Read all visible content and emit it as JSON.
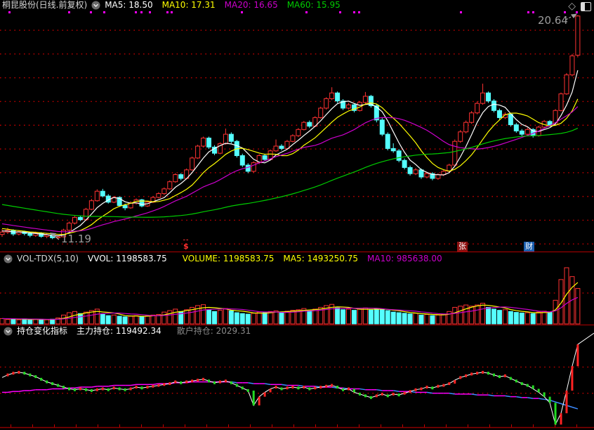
{
  "window": {
    "title": "桐昆股份(日线.前复权)"
  },
  "header": {
    "ma5": "MA5: 18.50",
    "ma10": "MA10: 17.31",
    "ma20": "MA20: 16.65",
    "ma60": "MA60: 15.95",
    "colors": {
      "ma5": "#ffffff",
      "ma10": "#ffff00",
      "ma20": "#cc00cc",
      "ma60": "#00cc00"
    }
  },
  "annotations": {
    "low": "11.19",
    "high": "20.64"
  },
  "markers": {
    "dollar": "$",
    "news1": "张",
    "news2": "财"
  },
  "volume_header": {
    "name": "VOL-TDX(5,10)",
    "vvol": "VVOL: 1198583.75",
    "volume": "VOLUME: 1198583.75",
    "ma5": "MA5: 1493250.75",
    "ma10": "MA10: 985638.00",
    "colors": {
      "name": "#d6d6d6",
      "vvol": "#ffffff",
      "volume": "#ffff00",
      "ma5": "#ffff00",
      "ma10": "#cc00cc"
    }
  },
  "holdings_header": {
    "name": "持仓变化指标",
    "main": "主力持仓: 119492.34",
    "retail": "散户持仓: 2029.31",
    "colors": {
      "name": "#ffffff",
      "main": "#ffffff",
      "retail": "#8a8a8a"
    }
  },
  "chart_data": [
    {
      "type": "candlestick",
      "title": "桐昆股份 日线 前复权",
      "ylim": [
        10.74,
        20.86
      ],
      "grid_prices": [
        11,
        12,
        13,
        14,
        15,
        16,
        17,
        18,
        19,
        20
      ],
      "ma_periods": [
        5,
        10,
        20,
        60
      ],
      "ma_colors": [
        "#ffffff",
        "#ffff00",
        "#cc00cc",
        "#00cc00"
      ],
      "up_color": "#ff3232",
      "down_color": "#55ffff",
      "low_annotation": {
        "value": 11.19,
        "index": 10
      },
      "high_annotation": {
        "value": 20.64,
        "index": 103
      },
      "ma_warmup": {
        "start": 13.9,
        "end": 11.5,
        "count": 60
      },
      "top_dots_x": [
        12,
        97,
        128,
        147,
        192,
        200,
        212,
        237,
        243,
        343,
        435,
        483,
        503,
        510,
        655,
        751,
        758,
        803,
        820
      ],
      "candles": [
        [
          11.4,
          11.62,
          11.3,
          11.5
        ],
        [
          11.5,
          11.68,
          11.42,
          11.58
        ],
        [
          11.58,
          11.62,
          11.34,
          11.42
        ],
        [
          11.42,
          11.58,
          11.36,
          11.52
        ],
        [
          11.52,
          11.56,
          11.36,
          11.44
        ],
        [
          11.44,
          11.5,
          11.28,
          11.36
        ],
        [
          11.36,
          11.52,
          11.3,
          11.46
        ],
        [
          11.46,
          11.5,
          11.26,
          11.32
        ],
        [
          11.32,
          11.44,
          11.24,
          11.38
        ],
        [
          11.38,
          11.42,
          11.2,
          11.26
        ],
        [
          11.26,
          11.36,
          11.19,
          11.3
        ],
        [
          11.3,
          11.64,
          11.28,
          11.58
        ],
        [
          11.58,
          11.94,
          11.54,
          11.88
        ],
        [
          11.88,
          12.18,
          11.82,
          12.12
        ],
        [
          12.12,
          12.2,
          11.96,
          12.02
        ],
        [
          12.02,
          12.52,
          12.0,
          12.46
        ],
        [
          12.46,
          12.9,
          12.42,
          12.82
        ],
        [
          12.82,
          13.3,
          12.78,
          13.22
        ],
        [
          13.22,
          13.32,
          12.96,
          13.02
        ],
        [
          13.02,
          13.1,
          12.7,
          12.76
        ],
        [
          12.76,
          13.02,
          12.72,
          12.96
        ],
        [
          12.96,
          13.0,
          12.56,
          12.62
        ],
        [
          12.62,
          12.7,
          12.42,
          12.52
        ],
        [
          12.52,
          12.8,
          12.48,
          12.72
        ],
        [
          12.72,
          12.92,
          12.66,
          12.86
        ],
        [
          12.86,
          12.9,
          12.54,
          12.6
        ],
        [
          12.6,
          12.82,
          12.56,
          12.76
        ],
        [
          12.76,
          13.02,
          12.72,
          12.96
        ],
        [
          12.96,
          13.18,
          12.92,
          13.12
        ],
        [
          13.12,
          13.38,
          13.06,
          13.32
        ],
        [
          13.32,
          13.68,
          13.28,
          13.62
        ],
        [
          13.62,
          13.98,
          13.58,
          13.92
        ],
        [
          13.92,
          13.98,
          13.68,
          13.76
        ],
        [
          13.76,
          14.18,
          13.72,
          14.12
        ],
        [
          14.12,
          14.68,
          14.08,
          14.62
        ],
        [
          14.62,
          15.18,
          14.58,
          15.12
        ],
        [
          15.12,
          15.52,
          15.06,
          15.46
        ],
        [
          15.46,
          15.52,
          15.0,
          15.08
        ],
        [
          15.08,
          15.16,
          14.74,
          14.82
        ],
        [
          14.82,
          15.28,
          14.78,
          15.22
        ],
        [
          15.22,
          15.86,
          15.18,
          15.62
        ],
        [
          15.62,
          15.7,
          15.24,
          15.32
        ],
        [
          15.32,
          15.38,
          14.64,
          14.72
        ],
        [
          14.72,
          14.8,
          14.24,
          14.32
        ],
        [
          14.32,
          14.4,
          13.98,
          14.06
        ],
        [
          14.06,
          14.48,
          14.0,
          14.42
        ],
        [
          14.42,
          14.78,
          14.36,
          14.72
        ],
        [
          14.72,
          14.8,
          14.48,
          14.56
        ],
        [
          14.56,
          14.98,
          14.52,
          14.92
        ],
        [
          14.92,
          15.4,
          14.88,
          15.12
        ],
        [
          15.12,
          15.2,
          14.94,
          15.02
        ],
        [
          15.02,
          15.38,
          14.98,
          15.32
        ],
        [
          15.32,
          15.62,
          15.28,
          15.56
        ],
        [
          15.56,
          15.88,
          15.5,
          15.82
        ],
        [
          15.82,
          16.18,
          15.78,
          16.12
        ],
        [
          16.12,
          16.2,
          15.88,
          15.96
        ],
        [
          15.96,
          16.38,
          15.92,
          16.32
        ],
        [
          16.32,
          16.78,
          16.28,
          16.72
        ],
        [
          16.72,
          17.18,
          16.66,
          17.12
        ],
        [
          17.12,
          17.6,
          17.06,
          17.36
        ],
        [
          17.36,
          17.42,
          16.94,
          17.02
        ],
        [
          17.02,
          17.1,
          16.64,
          16.72
        ],
        [
          16.72,
          16.94,
          16.66,
          16.86
        ],
        [
          16.86,
          16.92,
          16.54,
          16.62
        ],
        [
          16.62,
          17.02,
          16.58,
          16.96
        ],
        [
          16.96,
          17.4,
          16.9,
          17.22
        ],
        [
          17.22,
          17.28,
          16.74,
          16.82
        ],
        [
          16.82,
          16.88,
          16.12,
          16.22
        ],
        [
          16.22,
          16.3,
          15.54,
          15.62
        ],
        [
          15.62,
          15.7,
          14.94,
          15.02
        ],
        [
          15.02,
          15.24,
          14.84,
          14.92
        ],
        [
          14.92,
          15.0,
          14.44,
          14.52
        ],
        [
          14.52,
          14.6,
          14.14,
          14.22
        ],
        [
          14.22,
          14.3,
          13.88,
          13.96
        ],
        [
          13.96,
          14.2,
          13.9,
          14.12
        ],
        [
          14.12,
          14.18,
          13.74,
          13.82
        ],
        [
          13.82,
          14.04,
          13.76,
          13.96
        ],
        [
          13.96,
          14.02,
          13.68,
          13.76
        ],
        [
          13.76,
          13.98,
          13.7,
          13.92
        ],
        [
          13.92,
          14.12,
          13.86,
          14.06
        ],
        [
          14.06,
          14.38,
          14.0,
          14.32
        ],
        [
          14.32,
          15.4,
          14.28,
          15.32
        ],
        [
          15.32,
          15.8,
          15.26,
          15.72
        ],
        [
          15.72,
          16.2,
          15.66,
          16.12
        ],
        [
          16.12,
          16.6,
          16.06,
          16.52
        ],
        [
          16.52,
          17.0,
          16.46,
          16.92
        ],
        [
          16.92,
          17.75,
          16.86,
          17.36
        ],
        [
          17.36,
          17.42,
          16.94,
          17.02
        ],
        [
          17.02,
          17.1,
          16.54,
          16.62
        ],
        [
          16.62,
          16.7,
          16.24,
          16.32
        ],
        [
          16.32,
          16.54,
          16.26,
          16.46
        ],
        [
          16.46,
          16.52,
          15.94,
          16.02
        ],
        [
          16.02,
          16.1,
          15.68,
          15.76
        ],
        [
          15.76,
          15.84,
          15.54,
          15.62
        ],
        [
          15.62,
          15.9,
          15.56,
          15.82
        ],
        [
          15.82,
          15.88,
          15.48,
          15.56
        ],
        [
          15.56,
          15.98,
          15.52,
          15.92
        ],
        [
          15.92,
          16.22,
          15.86,
          16.16
        ],
        [
          16.16,
          16.22,
          15.94,
          16.02
        ],
        [
          16.02,
          16.68,
          15.98,
          16.62
        ],
        [
          16.62,
          17.38,
          16.58,
          17.32
        ],
        [
          17.32,
          18.2,
          17.28,
          18.12
        ],
        [
          18.12,
          19.0,
          18.06,
          18.92
        ],
        [
          18.95,
          20.64,
          18.86,
          20.6
        ]
      ]
    },
    {
      "type": "bar",
      "name": "VOL-TDX(5,10)",
      "ylim": [
        0,
        2400000
      ],
      "grid_values": [
        1045000
      ],
      "ma_periods": [
        5,
        10
      ],
      "ma_colors": [
        "#ffff00",
        "#cc00cc"
      ],
      "values": [
        180000,
        150000,
        160000,
        140000,
        170000,
        130000,
        160000,
        150000,
        140000,
        160000,
        200000,
        300000,
        380000,
        420000,
        350000,
        400000,
        450000,
        500000,
        320000,
        280000,
        300000,
        260000,
        240000,
        260000,
        280000,
        250000,
        270000,
        300000,
        320000,
        400000,
        450000,
        500000,
        420000,
        480000,
        560000,
        620000,
        650000,
        480000,
        420000,
        460000,
        520000,
        440000,
        380000,
        350000,
        330000,
        360000,
        400000,
        380000,
        420000,
        440000,
        400000,
        430000,
        460000,
        480000,
        520000,
        460000,
        500000,
        560000,
        620000,
        660000,
        540000,
        480000,
        500000,
        460000,
        500000,
        540000,
        470000,
        520000,
        480000,
        450000,
        400000,
        380000,
        360000,
        340000,
        360000,
        300000,
        320000,
        280000,
        300000,
        320000,
        420000,
        560000,
        600000,
        640000,
        600000,
        640000,
        700000,
        560000,
        500000,
        460000,
        480000,
        420000,
        390000,
        370000,
        380000,
        350000,
        400000,
        430000,
        390000,
        800000,
        1500000,
        1900000,
        1600000,
        1198584
      ]
    },
    {
      "type": "line",
      "name": "持仓变化指标",
      "ylim": [
        0,
        100
      ],
      "grid_values": [
        39,
        69
      ],
      "series": [
        {
          "name": "主力持仓",
          "color": "#ffffff",
          "up_tick_color": "#ff2222",
          "down_tick_color": "#22dd22",
          "values": [
            57,
            60,
            62,
            63,
            62,
            60,
            58,
            55,
            52,
            50,
            48,
            46,
            44,
            43,
            44,
            43,
            42,
            43,
            44,
            43,
            45,
            44,
            43,
            44,
            46,
            45,
            46,
            47,
            48,
            49,
            50,
            52,
            51,
            52,
            53,
            54,
            55,
            53,
            51,
            52,
            53,
            51,
            48,
            45,
            42,
            25,
            35,
            40,
            44,
            46,
            44,
            45,
            46,
            45,
            46,
            44,
            45,
            46,
            47,
            48,
            46,
            43,
            44,
            40,
            38,
            36,
            34,
            36,
            38,
            36,
            38,
            37,
            39,
            41,
            43,
            44,
            46,
            45,
            47,
            48,
            50,
            54,
            57,
            59,
            61,
            62,
            63,
            62,
            60,
            58,
            59,
            56,
            53,
            50,
            48,
            44,
            40,
            35,
            28,
            3,
            16,
            42,
            70,
            95
          ]
        },
        {
          "name": "散户持仓",
          "up_color": "#ff00ff",
          "down_color": "#3d8bff",
          "values": [
            40,
            40,
            41,
            41,
            42,
            42,
            43,
            43,
            43,
            44,
            44,
            44,
            45,
            45,
            46,
            46,
            46,
            47,
            47,
            47,
            48,
            48,
            48,
            48,
            49,
            49,
            49,
            49,
            50,
            50,
            50,
            51,
            51,
            51,
            52,
            52,
            52,
            52,
            52,
            52,
            52,
            52,
            51,
            51,
            51,
            50,
            50,
            50,
            49,
            49,
            49,
            48,
            48,
            48,
            47,
            47,
            47,
            46,
            46,
            46,
            45,
            45,
            44,
            44,
            44,
            43,
            43,
            43,
            42,
            42,
            42,
            41,
            41,
            41,
            40,
            40,
            40,
            39,
            39,
            39,
            39,
            38,
            38,
            38,
            38,
            37,
            37,
            37,
            36,
            36,
            36,
            35,
            35,
            34,
            34,
            33,
            33,
            32,
            31,
            29,
            27,
            25,
            23,
            21
          ]
        }
      ]
    }
  ]
}
